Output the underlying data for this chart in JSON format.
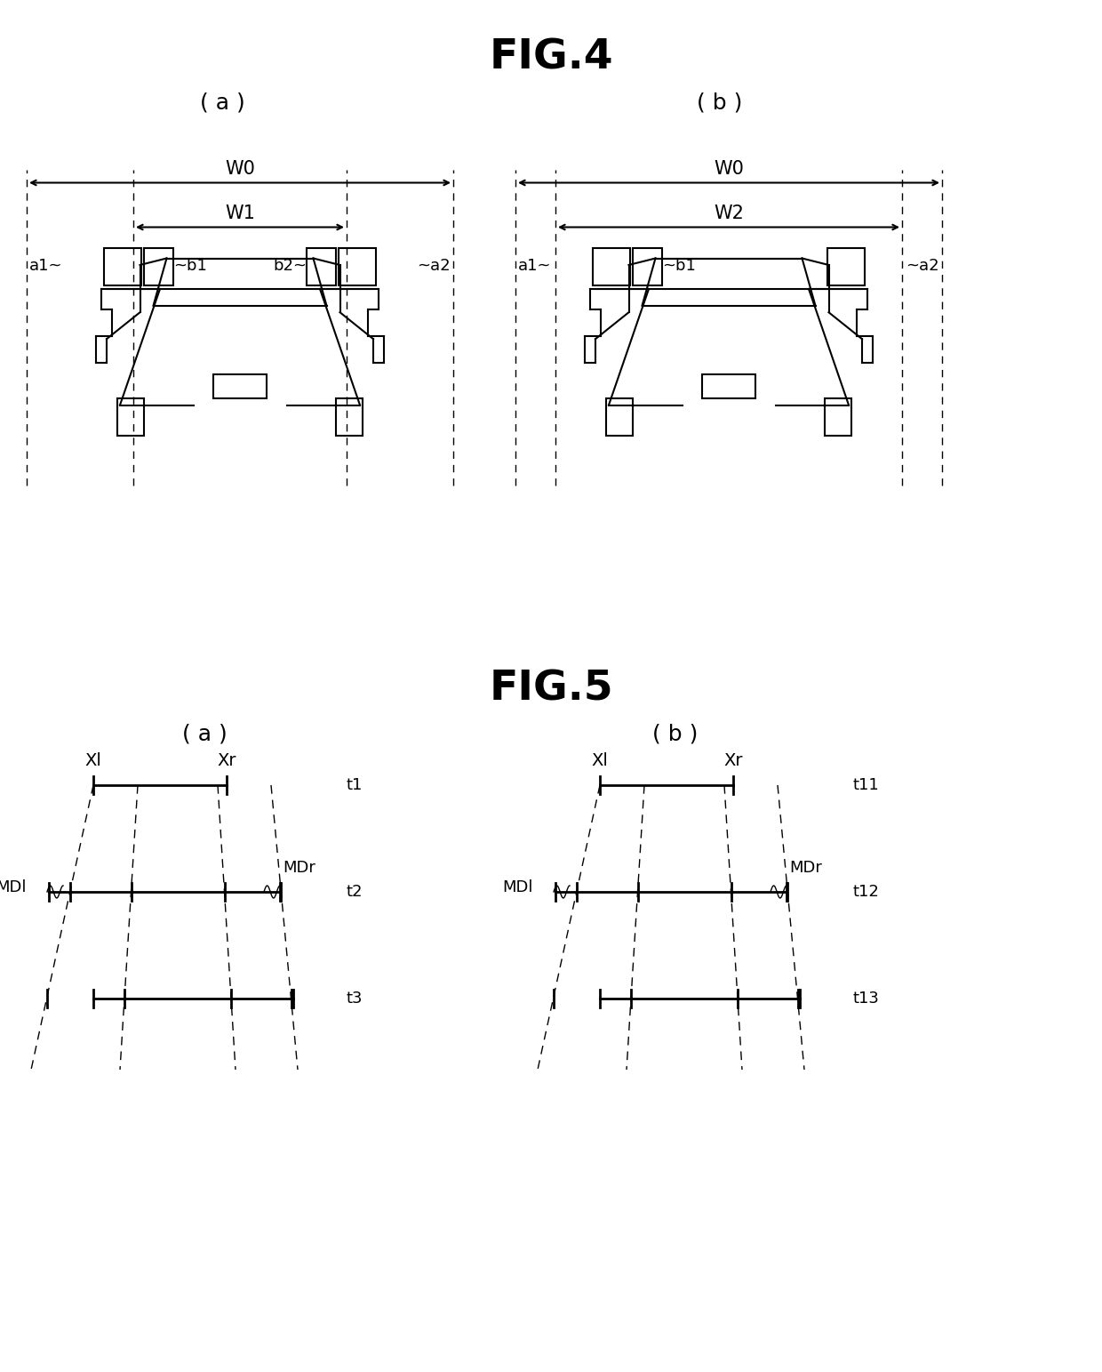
{
  "fig4_title": "FIG.4",
  "fig5_title": "FIG.5",
  "sub_a": "( a )",
  "sub_b": "( b )",
  "bg_color": "#ffffff",
  "line_color": "#000000",
  "fig4_a_labels": {
    "W0": "W0",
    "W1": "W1",
    "a1": "a1~",
    "a2": "~a2",
    "b1": "~b1",
    "b2": "b2~"
  },
  "fig4_b_labels": {
    "W0": "W0",
    "W2": "W2",
    "a1": "a1~",
    "a2": "~a2",
    "b1": "~b1"
  },
  "fig5_a_labels": {
    "Xl": "Xl",
    "Xr": "Xr",
    "MDl": "MDl",
    "MDr": "MDr",
    "t1": "t1",
    "t2": "t2",
    "t3": "t3"
  },
  "fig5_b_labels": {
    "Xl": "Xl",
    "Xr": "Xr",
    "MDl": "MDl",
    "MDr": "MDr",
    "t1": "t11",
    "t2": "t12",
    "t3": "t13"
  }
}
